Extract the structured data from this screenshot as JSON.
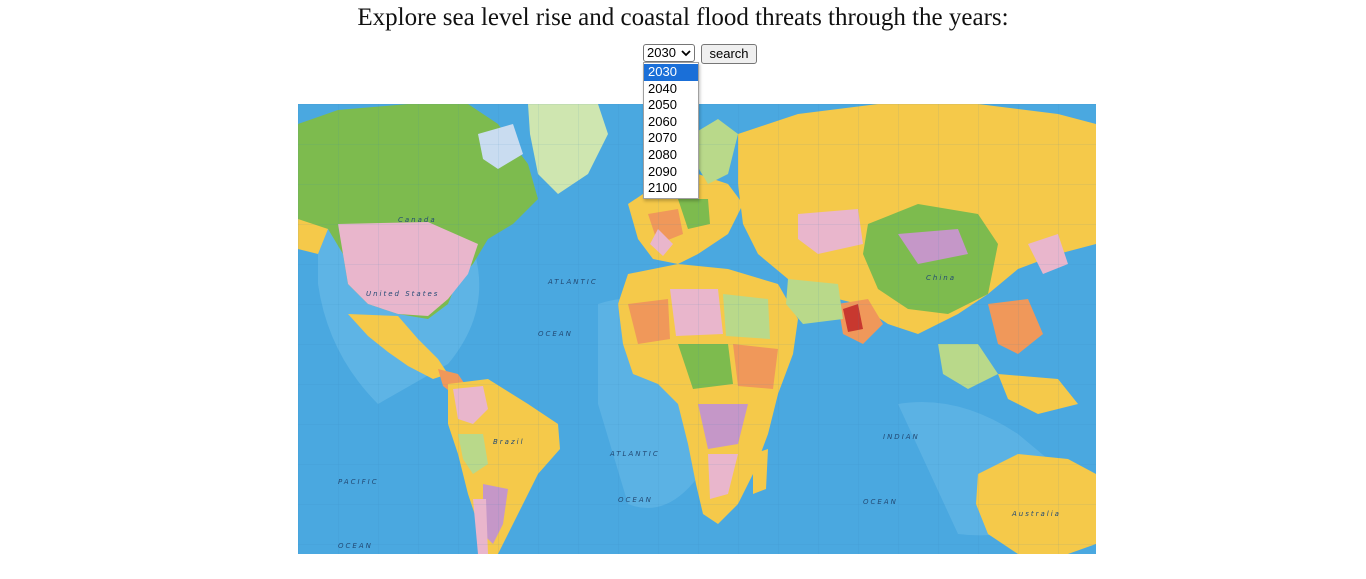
{
  "page": {
    "heading": "Explore sea level rise and coastal flood threats through the years:"
  },
  "controls": {
    "year_select": {
      "selected": "2030",
      "options": [
        "2030",
        "2040",
        "2050",
        "2060",
        "2070",
        "2080",
        "2090",
        "2100"
      ]
    },
    "search_label": "search"
  },
  "map": {
    "ocean_labels": [
      "ATLANTIC",
      "OCEAN",
      "ATLANTIC",
      "OCEAN",
      "PACIFIC",
      "OCEAN",
      "INDIAN",
      "OCEAN"
    ],
    "country_labels": [
      "Canada",
      "United States",
      "Brazil",
      "China",
      "Australia"
    ],
    "colors": {
      "ocean": "#4aa8e0",
      "ocean_light": "#7cc4ec",
      "land_yellow": "#f5c94a",
      "land_green": "#7dbb4e",
      "land_pink": "#e9b6cc",
      "land_orange": "#f0985a",
      "land_lightgreen": "#b9d98a",
      "land_purple": "#c597c8"
    }
  }
}
